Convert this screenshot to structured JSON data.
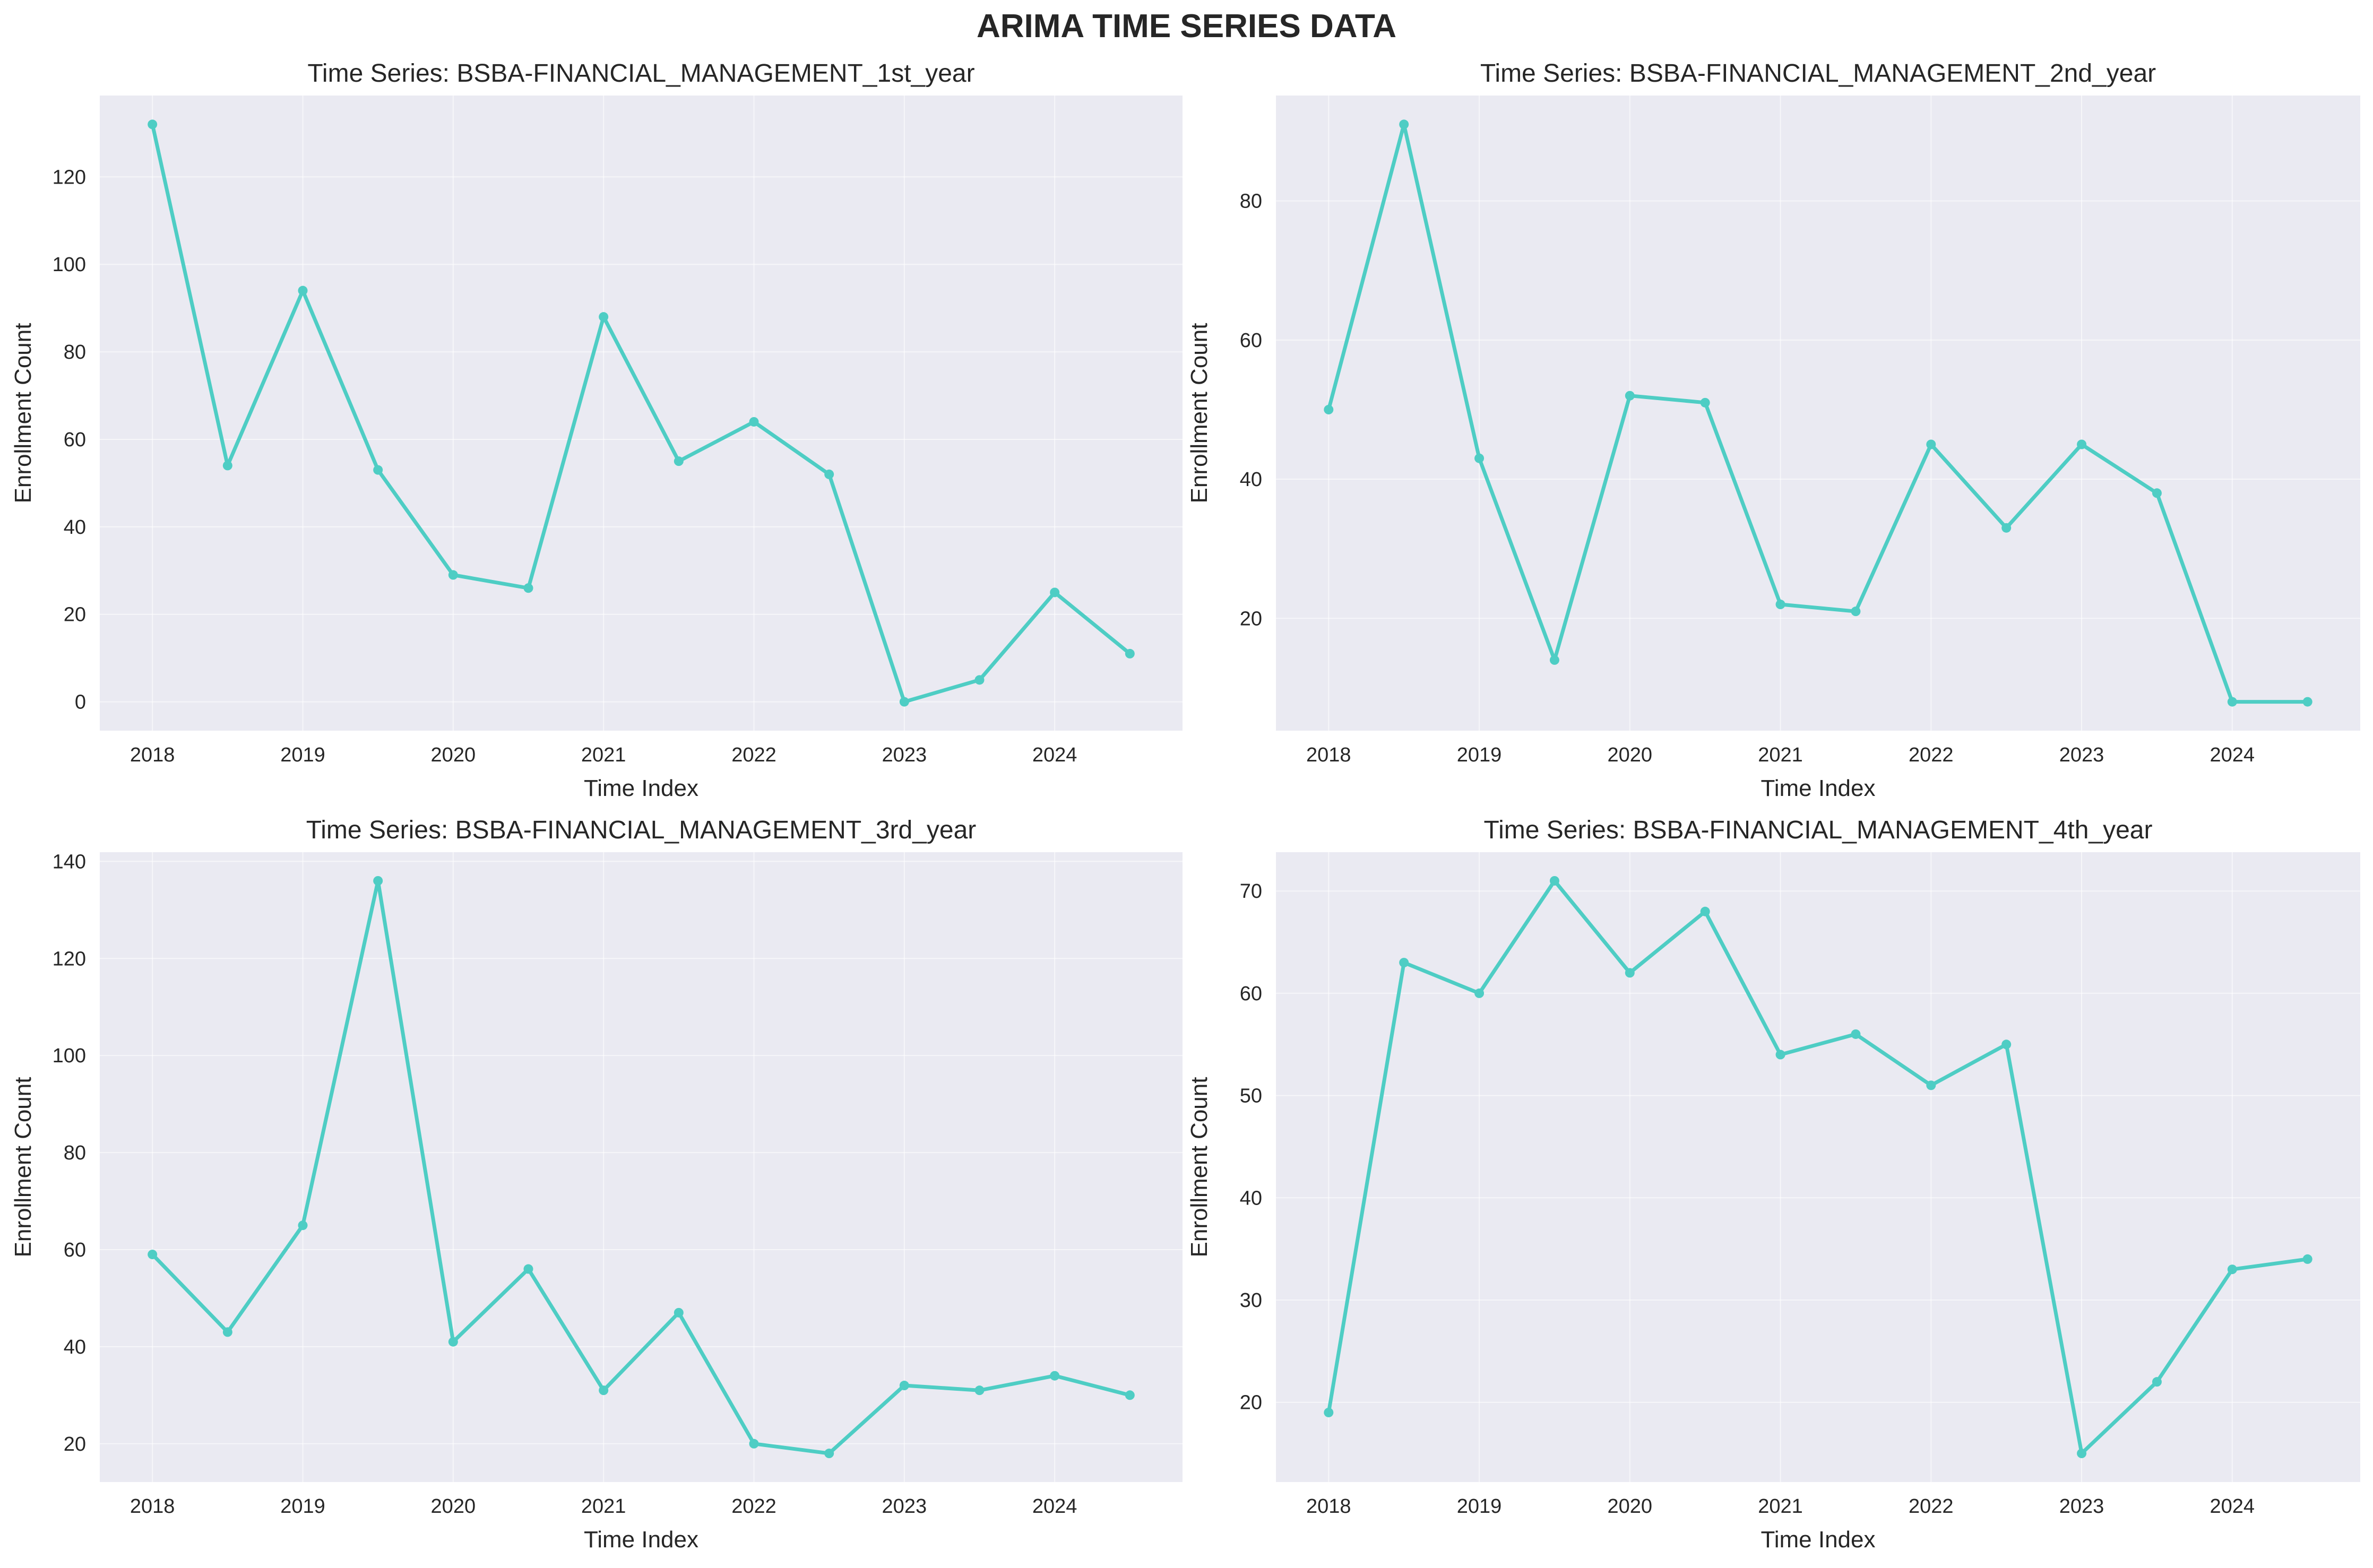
{
  "figure": {
    "title": "ARIMA TIME SERIES DATA",
    "colors": {
      "series": "#4ecdc4",
      "plot_background": "#eaeaf2",
      "grid": "#ffffff",
      "text": "#262626"
    }
  },
  "chart_data": [
    {
      "type": "line",
      "title": "Time Series: BSBA-FINANCIAL_MANAGEMENT_1st_year",
      "xlabel": "Time Index",
      "ylabel": "Enrollment Count",
      "x": [
        2018,
        2018.5,
        2019,
        2019.5,
        2020,
        2020.5,
        2021,
        2021.5,
        2022,
        2022.5,
        2023,
        2023.5,
        2024,
        2024.5
      ],
      "values": [
        132,
        54,
        94,
        53,
        29,
        26,
        88,
        55,
        64,
        52,
        0,
        5,
        25,
        11
      ],
      "xticks": [
        "2018",
        "2019",
        "2020",
        "2021",
        "2022",
        "2023",
        "2024"
      ],
      "yticks": [
        "0",
        "20",
        "40",
        "60",
        "80",
        "100",
        "120"
      ],
      "xlim": [
        2017.65,
        2024.85
      ],
      "ylim": [
        -6.6,
        138.6
      ],
      "grid": true
    },
    {
      "type": "line",
      "title": "Time Series: BSBA-FINANCIAL_MANAGEMENT_2nd_year",
      "xlabel": "Time Index",
      "ylabel": "Enrollment Count",
      "x": [
        2018,
        2018.5,
        2019,
        2019.5,
        2020,
        2020.5,
        2021,
        2021.5,
        2022,
        2022.5,
        2023,
        2023.5,
        2024,
        2024.5
      ],
      "values": [
        50,
        91,
        43,
        14,
        52,
        51,
        22,
        21,
        45,
        33,
        45,
        38,
        8,
        8
      ],
      "xticks": [
        "2018",
        "2019",
        "2020",
        "2021",
        "2022",
        "2023",
        "2024"
      ],
      "yticks": [
        "20",
        "40",
        "60",
        "80"
      ],
      "xlim": [
        2017.65,
        2024.85
      ],
      "ylim": [
        3.85,
        95.15
      ],
      "grid": true
    },
    {
      "type": "line",
      "title": "Time Series: BSBA-FINANCIAL_MANAGEMENT_3rd_year",
      "xlabel": "Time Index",
      "ylabel": "Enrollment Count",
      "x": [
        2018,
        2018.5,
        2019,
        2019.5,
        2020,
        2020.5,
        2021,
        2021.5,
        2022,
        2022.5,
        2023,
        2023.5,
        2024,
        2024.5
      ],
      "values": [
        59,
        43,
        65,
        136,
        41,
        56,
        31,
        47,
        20,
        18,
        32,
        31,
        34,
        30
      ],
      "xticks": [
        "2018",
        "2019",
        "2020",
        "2021",
        "2022",
        "2023",
        "2024"
      ],
      "yticks": [
        "20",
        "40",
        "60",
        "80",
        "100",
        "120",
        "140"
      ],
      "xlim": [
        2017.65,
        2024.85
      ],
      "ylim": [
        12.1,
        141.9
      ],
      "grid": true
    },
    {
      "type": "line",
      "title": "Time Series: BSBA-FINANCIAL_MANAGEMENT_4th_year",
      "xlabel": "Time Index",
      "ylabel": "Enrollment Count",
      "x": [
        2018,
        2018.5,
        2019,
        2019.5,
        2020,
        2020.5,
        2021,
        2021.5,
        2022,
        2022.5,
        2023,
        2023.5,
        2024,
        2024.5
      ],
      "values": [
        19,
        63,
        60,
        71,
        62,
        68,
        54,
        56,
        51,
        55,
        15,
        22,
        33,
        34
      ],
      "xticks": [
        "2018",
        "2019",
        "2020",
        "2021",
        "2022",
        "2023",
        "2024"
      ],
      "yticks": [
        "20",
        "30",
        "40",
        "50",
        "60",
        "70"
      ],
      "xlim": [
        2017.65,
        2024.85
      ],
      "ylim": [
        12.2,
        73.8
      ],
      "grid": true
    }
  ]
}
